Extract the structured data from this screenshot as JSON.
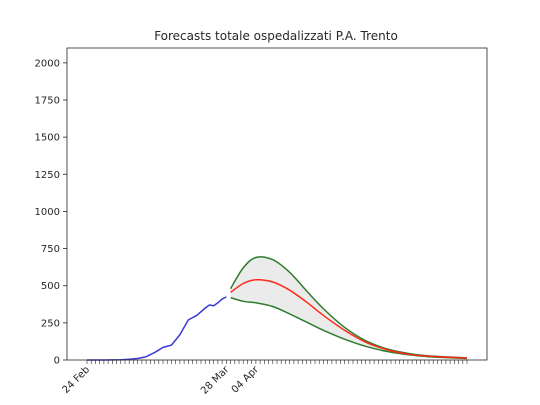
{
  "chart_data": {
    "type": "line",
    "title": "Forecasts totale ospedalizzati P.A. Trento",
    "xlabel": "",
    "ylabel": "",
    "ylim": [
      0,
      2100
    ],
    "x_range": [
      "2020-02-24",
      "2020-05-24"
    ],
    "yticks": [
      0,
      250,
      500,
      750,
      1000,
      1250,
      1500,
      1750,
      2000
    ],
    "xtick_labels": [
      {
        "date": "2020-02-24",
        "label": "24 Feb"
      },
      {
        "date": "2020-03-28",
        "label": "28 Mar"
      },
      {
        "date": "2020-04-04",
        "label": "04 Apr"
      }
    ],
    "grid": false,
    "legend": "none",
    "colors": {
      "observed": "#3a3ad6",
      "forecast": "#ff2a1a",
      "bounds": "#2e7d2e",
      "band": "#ebebeb"
    },
    "series": [
      {
        "key": "observed",
        "x": [
          "2020-02-24",
          "2020-02-26",
          "2020-02-28",
          "2020-03-01",
          "2020-03-03",
          "2020-03-05",
          "2020-03-07",
          "2020-03-09",
          "2020-03-11",
          "2020-03-13",
          "2020-03-15",
          "2020-03-17",
          "2020-03-19",
          "2020-03-21",
          "2020-03-23",
          "2020-03-24",
          "2020-03-25",
          "2020-03-26",
          "2020-03-27",
          "2020-03-28"
        ],
        "values": [
          0,
          0,
          0,
          1,
          2,
          5,
          10,
          22,
          50,
          85,
          100,
          170,
          270,
          300,
          350,
          370,
          365,
          385,
          410,
          425
        ]
      },
      {
        "key": "forecast",
        "x": [
          "2020-03-29",
          "2020-04-01",
          "2020-04-04",
          "2020-04-08",
          "2020-04-12",
          "2020-04-16",
          "2020-04-20",
          "2020-04-25",
          "2020-04-30",
          "2020-05-05",
          "2020-05-10",
          "2020-05-15",
          "2020-05-20",
          "2020-05-24"
        ],
        "values": [
          455,
          515,
          540,
          525,
          470,
          390,
          300,
          200,
          120,
          70,
          40,
          25,
          18,
          12
        ]
      },
      {
        "key": "upper",
        "x": [
          "2020-03-29",
          "2020-04-01",
          "2020-04-04",
          "2020-04-08",
          "2020-04-12",
          "2020-04-16",
          "2020-04-20",
          "2020-04-25",
          "2020-04-30",
          "2020-05-05",
          "2020-05-10",
          "2020-05-15",
          "2020-05-20",
          "2020-05-24"
        ],
        "values": [
          480,
          620,
          690,
          675,
          590,
          465,
          345,
          220,
          130,
          75,
          45,
          28,
          20,
          14
        ]
      },
      {
        "key": "lower",
        "x": [
          "2020-03-29",
          "2020-04-01",
          "2020-04-04",
          "2020-04-08",
          "2020-04-12",
          "2020-04-16",
          "2020-04-20",
          "2020-04-25",
          "2020-04-30",
          "2020-05-05",
          "2020-05-10",
          "2020-05-15",
          "2020-05-20",
          "2020-05-24"
        ],
        "values": [
          420,
          395,
          385,
          360,
          310,
          255,
          200,
          140,
          92,
          58,
          36,
          22,
          15,
          10
        ]
      }
    ]
  }
}
